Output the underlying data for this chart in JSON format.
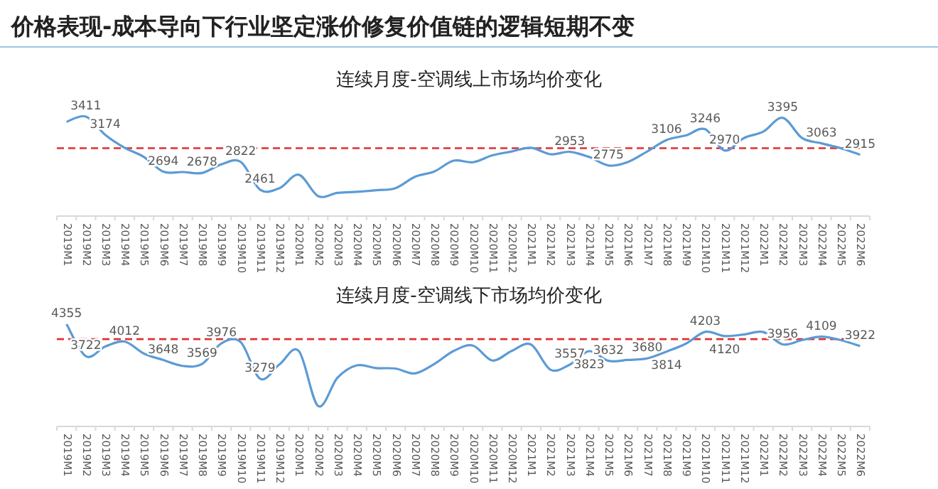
{
  "chart_data": [
    {
      "type": "line",
      "title": "价格表现-成本导向下行业坚定涨价修复价值链的逻辑短期不变",
      "subtitle": "连续月度-空调线上市场均价变化",
      "categories": [
        "2019M1",
        "2019M2",
        "2019M3",
        "2019M4",
        "2019M5",
        "2019M6",
        "2019M7",
        "2019M8",
        "2019M9",
        "2019M10",
        "2019M11",
        "2019M12",
        "2020M1",
        "2020M2",
        "2020M3",
        "2020M4",
        "2020M5",
        "2020M6",
        "2020M7",
        "2020M8",
        "2020M9",
        "2020M10",
        "2020M11",
        "2020M12",
        "2021M1",
        "2021M2",
        "2021M3",
        "2021M4",
        "2021M5",
        "2021M6",
        "2021M7",
        "2021M8",
        "2021M9",
        "2021M10",
        "2021M11",
        "2021M12",
        "2022M1",
        "2022M2",
        "2022M3",
        "2022M4",
        "2022M5",
        "2022M6"
      ],
      "series": [
        {
          "color": "#5b9bd5",
          "values": [
            3342,
            3411,
            3174,
            3006,
            2886,
            2694,
            2690,
            2678,
            2790,
            2822,
            2461,
            2480,
            2655,
            2376,
            2418,
            2432,
            2453,
            2481,
            2628,
            2697,
            2838,
            2817,
            2907,
            2957,
            3006,
            2921,
            2953,
            2886,
            2775,
            2820,
            2957,
            3106,
            3166,
            3246,
            2970,
            3132,
            3216,
            3395,
            3132,
            3063,
            3000,
            2915
          ],
          "value_labels": [
            null,
            "3411",
            "3174",
            null,
            null,
            "2694",
            null,
            "2678",
            null,
            "2822",
            "2461",
            null,
            null,
            null,
            null,
            null,
            null,
            null,
            null,
            null,
            null,
            null,
            null,
            null,
            null,
            null,
            "2953",
            null,
            "2775",
            null,
            null,
            "3106",
            null,
            "3246",
            "2970",
            null,
            null,
            "3395",
            null,
            "3063",
            null,
            "2915"
          ]
        }
      ],
      "ref_lines": [
        {
          "axis": "y",
          "value": 3000,
          "color": "#e03030",
          "line_style": "dashed"
        }
      ],
      "marker": "none",
      "tick_labels": "x"
    },
    {
      "type": "line",
      "title": "连续月度-空调线下市场均价变化",
      "categories": [
        "2019M1",
        "2019M2",
        "2019M3",
        "2019M4",
        "2019M5",
        "2019M6",
        "2019M7",
        "2019M8",
        "2019M9",
        "2019M10",
        "2019M11",
        "2019M12",
        "2020M1",
        "2020M2",
        "2020M3",
        "2020M4",
        "2020M5",
        "2020M6",
        "2020M7",
        "2020M8",
        "2020M9",
        "2020M10",
        "2020M11",
        "2020M12",
        "2021M1",
        "2021M2",
        "2021M3",
        "2021M4",
        "2021M5",
        "2021M6",
        "2021M7",
        "2021M8",
        "2021M9",
        "2021M10",
        "2021M11",
        "2021M12",
        "2022M1",
        "2022M2",
        "2022M3",
        "2022M4",
        "2022M5",
        "2022M6"
      ],
      "series": [
        {
          "color": "#5b9bd5",
          "values": [
            4355,
            3722,
            3913,
            4012,
            3774,
            3648,
            3533,
            3569,
            3976,
            4000,
            3279,
            3560,
            3827,
            2743,
            3300,
            3543,
            3490,
            3480,
            3385,
            3569,
            3827,
            3932,
            3638,
            3827,
            3953,
            3458,
            3557,
            3823,
            3632,
            3650,
            3680,
            3814,
            3970,
            4203,
            4120,
            4150,
            4200,
            3956,
            4040,
            4109,
            4040,
            3922
          ],
          "value_labels": [
            "4355",
            "3722",
            null,
            "4012",
            null,
            "3648",
            null,
            "3569",
            "3976",
            null,
            "3279",
            null,
            null,
            null,
            null,
            null,
            null,
            null,
            null,
            null,
            null,
            null,
            null,
            null,
            null,
            null,
            "3557",
            "3823",
            "3632",
            null,
            "3680",
            "3814",
            null,
            "4203",
            "4120",
            null,
            null,
            "3956",
            null,
            "4109",
            null,
            "3922"
          ]
        }
      ],
      "ref_lines": [
        {
          "axis": "y",
          "value": 4060,
          "color": "#e03030",
          "line_style": "dashed"
        }
      ],
      "marker": "none",
      "tick_labels": "x"
    }
  ]
}
